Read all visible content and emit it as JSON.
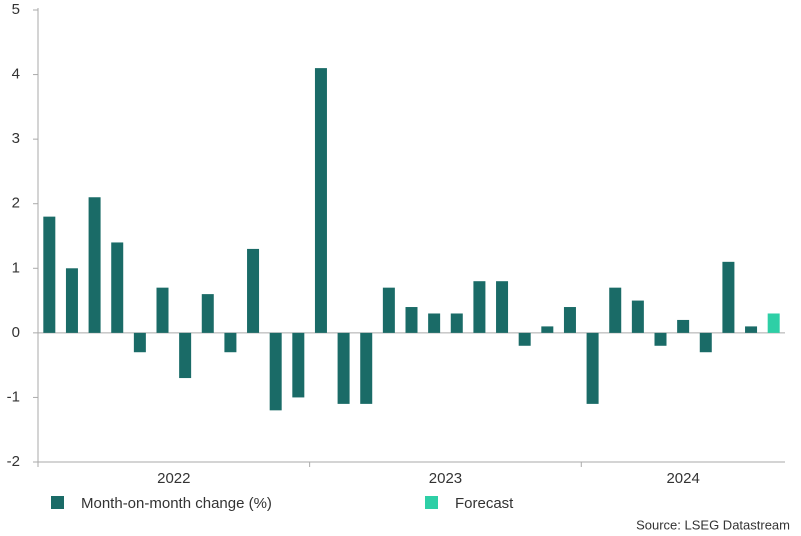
{
  "chart_data": {
    "type": "bar",
    "years": [
      "2022",
      "2023",
      "2024"
    ],
    "series": [
      {
        "name": "Month-on-month change (%)",
        "color": "#1a6b67",
        "values": [
          1.8,
          1.0,
          2.1,
          1.4,
          -0.3,
          0.7,
          -0.7,
          0.6,
          -0.3,
          1.3,
          -1.2,
          -1.0,
          4.1,
          -1.1,
          -1.1,
          0.7,
          0.4,
          0.3,
          0.3,
          0.8,
          0.8,
          -0.2,
          0.1,
          0.4,
          -1.1,
          0.7,
          0.5,
          -0.2,
          0.2,
          -0.3,
          1.1,
          0.1,
          null
        ]
      },
      {
        "name": "Forecast",
        "color": "#2ecfa6",
        "values": [
          null,
          null,
          null,
          null,
          null,
          null,
          null,
          null,
          null,
          null,
          null,
          null,
          null,
          null,
          null,
          null,
          null,
          null,
          null,
          null,
          null,
          null,
          null,
          null,
          null,
          null,
          null,
          null,
          null,
          null,
          null,
          null,
          0.3
        ]
      }
    ],
    "ylim": [
      -2,
      5
    ],
    "yticks": [
      -2,
      -1,
      0,
      1,
      2,
      3,
      4,
      5
    ],
    "source": "Source: LSEG Datastream"
  }
}
